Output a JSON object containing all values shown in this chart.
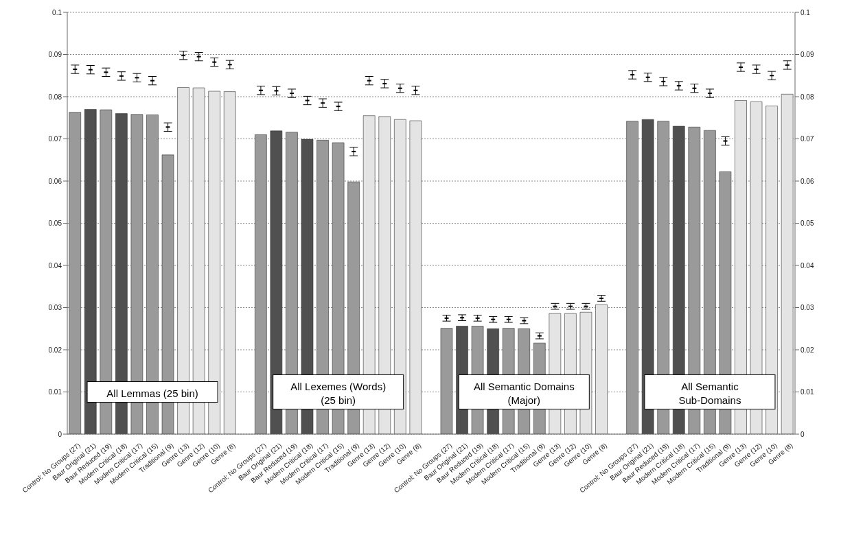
{
  "chart_data": {
    "type": "bar",
    "categories": [
      "Control: No Groups (27)",
      "Baur Original (21)",
      "Baur Reduced (19)",
      "Modern Critical (18)",
      "Modern Critical (17)",
      "Modern Critical (15)",
      "Traditional (9)",
      "Genre (13)",
      "Genre (12)",
      "Genre (10)",
      "Genre (8)",
      null,
      "Control: No Groups (27)",
      "Baur Original (21)",
      "Baur Reduced (19)",
      "Modern Critical (18)",
      "Modern Critical (17)",
      "Modern Critical (15)",
      "Traditional (9)",
      "Genre (13)",
      "Genre (12)",
      "Genre (10)",
      "Genre (8)",
      null,
      "Control: No Groups (27)",
      "Baur Original (21)",
      "Baur Reduced (19)",
      "Modern Critical (18)",
      "Modern Critical (17)",
      "Modern Critical (15)",
      "Traditional (9)",
      "Genre (13)",
      "Genre (12)",
      "Genre (10)",
      "Genre (8)",
      null,
      "Control: No Groups (27)",
      "Baur Original (21)",
      "Baur Reduced (19)",
      "Modern Critical (18)",
      "Modern Critical (17)",
      "Modern Critical (15)",
      "Traditional (9)",
      "Genre (13)",
      "Genre (12)",
      "Genre (10)",
      "Genre (8)"
    ],
    "series": [
      {
        "type": "bar",
        "values": [
          0.0763,
          0.077,
          0.0769,
          0.076,
          0.0758,
          0.0757,
          0.0662,
          0.0822,
          0.0821,
          0.0813,
          0.0812,
          null,
          0.071,
          0.0719,
          0.0716,
          0.0699,
          0.0697,
          0.0691,
          0.0598,
          0.0755,
          0.0753,
          0.0746,
          0.0743,
          null,
          0.0251,
          0.0256,
          0.0256,
          0.025,
          0.0251,
          0.025,
          0.0216,
          0.0286,
          0.0286,
          0.0289,
          0.0307,
          null,
          0.0742,
          0.0746,
          0.0742,
          0.073,
          0.0728,
          0.072,
          0.0622,
          0.0791,
          0.0788,
          0.0778,
          0.0806
        ],
        "colors": [
          "#9a9a9a",
          "#505050",
          "#9a9a9a",
          "#505050",
          "#9a9a9a",
          "#9a9a9a",
          "#9a9a9a",
          "#e4e4e4",
          "#e4e4e4",
          "#e4e4e4",
          "#e4e4e4",
          "#ffffff",
          "#9a9a9a",
          "#505050",
          "#9a9a9a",
          "#505050",
          "#9a9a9a",
          "#9a9a9a",
          "#9a9a9a",
          "#e4e4e4",
          "#e4e4e4",
          "#e4e4e4",
          "#e4e4e4",
          "#ffffff",
          "#9a9a9a",
          "#505050",
          "#9a9a9a",
          "#505050",
          "#9a9a9a",
          "#9a9a9a",
          "#9a9a9a",
          "#e4e4e4",
          "#e4e4e4",
          "#e4e4e4",
          "#e4e4e4",
          "#ffffff",
          "#9a9a9a",
          "#505050",
          "#9a9a9a",
          "#505050",
          "#9a9a9a",
          "#9a9a9a",
          "#9a9a9a",
          "#e4e4e4",
          "#e4e4e4",
          "#e4e4e4",
          "#e4e4e4"
        ]
      },
      {
        "type": "scatter",
        "color": "#000000",
        "values": [
          0.0865,
          0.0864,
          0.0858,
          0.0849,
          0.0845,
          0.0838,
          0.0728,
          0.0898,
          0.0895,
          0.0882,
          0.0876,
          null,
          0.0815,
          0.0814,
          0.0808,
          0.0791,
          0.0785,
          0.0777,
          0.067,
          0.0838,
          0.0831,
          0.082,
          0.0815,
          null,
          0.0275,
          0.0276,
          0.0275,
          0.0272,
          0.0272,
          0.0269,
          0.0233,
          0.0303,
          0.0303,
          0.0303,
          0.0322,
          null,
          0.0852,
          0.0846,
          0.0836,
          0.0826,
          0.082,
          0.0808,
          0.0695,
          0.087,
          0.0865,
          0.085,
          0.0875
        ],
        "errors": [
          0.001,
          0.001,
          0.001,
          0.001,
          0.001,
          0.001,
          0.001,
          0.001,
          0.001,
          0.001,
          0.001,
          null,
          0.001,
          0.001,
          0.001,
          0.001,
          0.001,
          0.001,
          0.001,
          0.001,
          0.001,
          0.001,
          0.001,
          null,
          0.0007,
          0.0007,
          0.0007,
          0.0007,
          0.0007,
          0.0007,
          0.0007,
          0.0007,
          0.0007,
          0.0007,
          0.0007,
          null,
          0.001,
          0.001,
          0.001,
          0.001,
          0.001,
          0.001,
          0.001,
          0.001,
          0.001,
          0.001,
          0.001
        ]
      }
    ],
    "annotations": [
      "All Lemmas (25 bin)",
      "All Lexemes (Words) (25 bin)",
      "All Semantic Domains (Major)",
      "All Semantic Sub-Domains"
    ],
    "ylim": [
      0,
      0.1
    ],
    "yticks": [
      0,
      0.01,
      0.02,
      0.03,
      0.04,
      0.05,
      0.06,
      0.07,
      0.08,
      0.09,
      0.1
    ],
    "y2lim": [
      0,
      0.1
    ],
    "y2ticks": [
      0,
      0.01,
      0.02,
      0.03,
      0.04,
      0.05,
      0.06,
      0.07,
      0.08,
      0.09,
      0.1
    ],
    "grid": "y",
    "legend": false
  }
}
